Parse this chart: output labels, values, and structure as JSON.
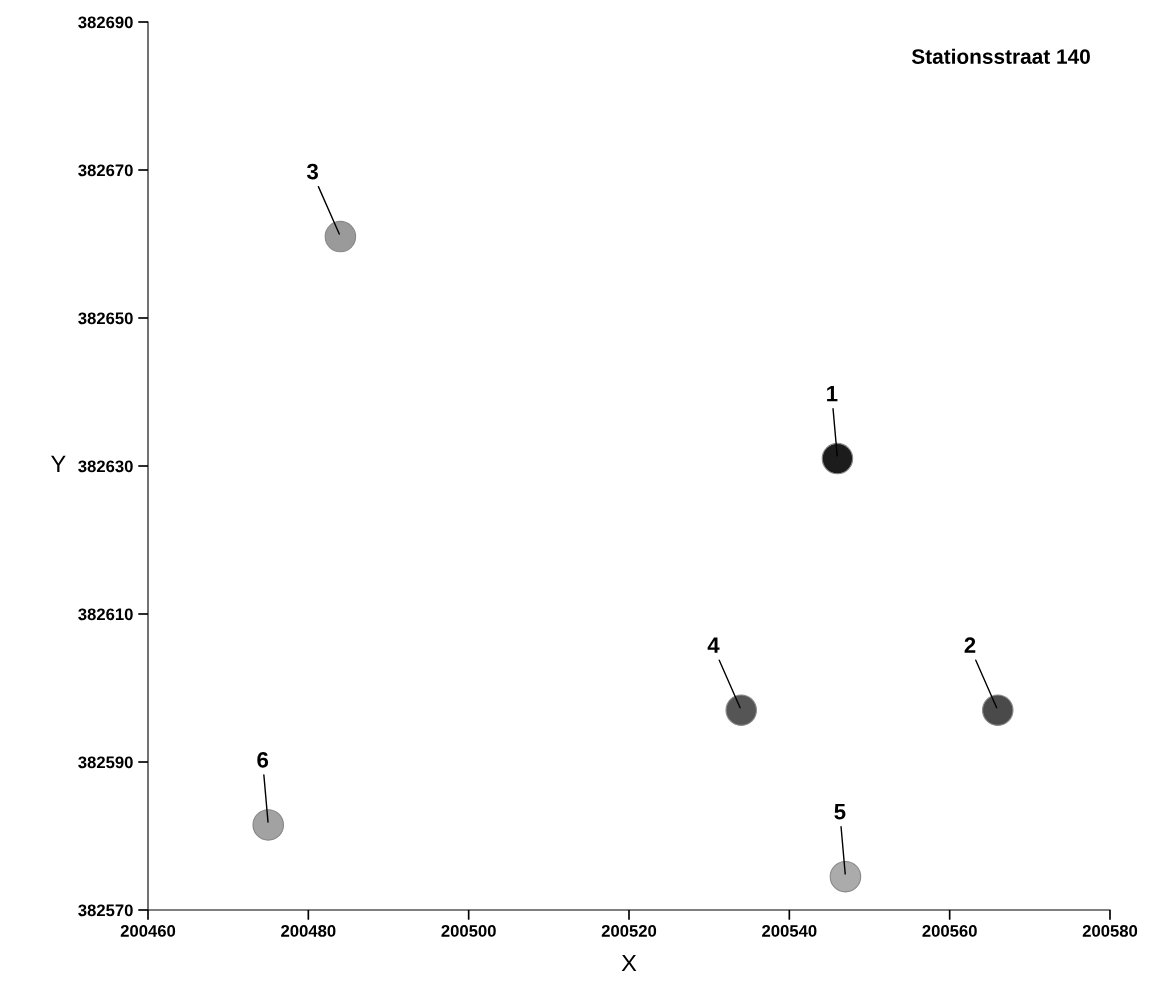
{
  "chart_data": {
    "type": "scatter",
    "title": "Stationsstraat 140",
    "xlabel": "X",
    "ylabel": "Y",
    "x": [
      200546,
      200566,
      200484,
      200534,
      200547,
      200475
    ],
    "values": [
      382631,
      382597,
      382661,
      382597,
      382574.5,
      382581.5
    ],
    "colors": [
      "#1c1c1c",
      "#4a4a4a",
      "#9a9a9a",
      "#555555",
      "#ababab",
      "#a2a2a2"
    ],
    "xlim": [
      200460,
      200580
    ],
    "xticks": [
      200460,
      200480,
      200500,
      200520,
      200540,
      200560,
      200580
    ],
    "ylim": [
      382570,
      382690
    ],
    "yticks": [
      382570,
      382590,
      382610,
      382630,
      382650,
      382670,
      382690
    ],
    "marker": "circle",
    "grid": false,
    "legend": false,
    "annotations": [
      {
        "text": "1",
        "x": 200546,
        "y": 382631
      },
      {
        "text": "2",
        "x": 200566,
        "y": 382597
      },
      {
        "text": "3",
        "x": 200484,
        "y": 382661
      },
      {
        "text": "4",
        "x": 200534,
        "y": 382597
      },
      {
        "text": "5",
        "x": 200547,
        "y": 382574.5
      },
      {
        "text": "6",
        "x": 200475,
        "y": 382581.5
      }
    ]
  }
}
